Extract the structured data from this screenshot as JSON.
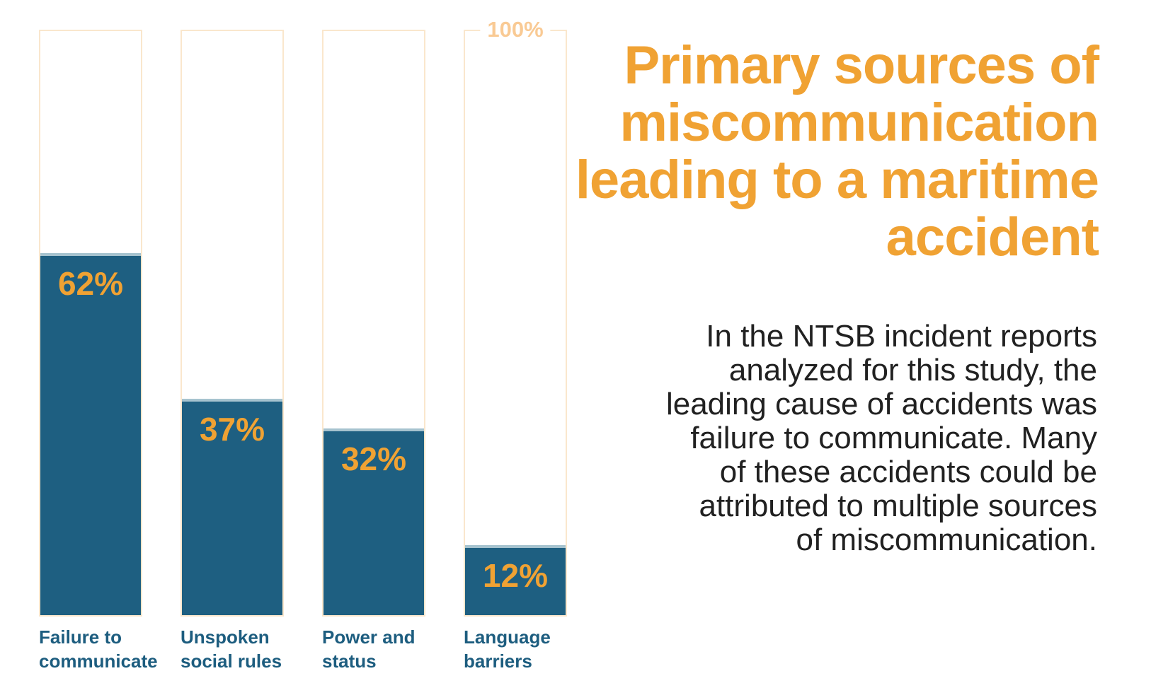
{
  "title": {
    "text": "Primary sources of\nmiscommunication\nleading to a maritime\naccident"
  },
  "paragraph": {
    "text": "In the NTSB incident reports\nanalyzed for this study, the\nleading cause of accidents was\nfailure to communicate. Many\nof these accidents could be\nattributed to multiple sources\nof miscommunication."
  },
  "axis": {
    "max_label": "100%"
  },
  "bars": [
    {
      "label": "Failure to\ncommunicate",
      "value_label": "62%",
      "pct": 62
    },
    {
      "label": "Unspoken\nsocial rules",
      "value_label": "37%",
      "pct": 37
    },
    {
      "label": "Power and\nstatus",
      "value_label": "32%",
      "pct": 32
    },
    {
      "label": "Language\nbarriers",
      "value_label": "12%",
      "pct": 12
    }
  ],
  "colors": {
    "accent_orange": "#f0a233",
    "light_orange": "#f9ca94",
    "bar_fill": "#1e5f81",
    "bar_fill_highlight": "#a6c3cf",
    "bar_outline": "#fae7cd",
    "label_teal": "#1d5d7f",
    "text_dark": "#212121"
  },
  "chart_data": {
    "type": "bar",
    "title": "Primary sources of miscommunication leading to a maritime accident",
    "subtitle": "In the NTSB incident reports analyzed for this study, the leading cause of accidents was failure to communicate. Many of these accidents could be attributed to multiple sources of miscommunication.",
    "categories": [
      "Failure to communicate",
      "Unspoken social rules",
      "Power and status",
      "Language barriers"
    ],
    "values": [
      62,
      37,
      32,
      12
    ],
    "unit": "%",
    "ylim": [
      0,
      100
    ],
    "annotations": [
      "100%"
    ],
    "xlabel": "",
    "ylabel": "",
    "grid": false,
    "legend": false,
    "orientation": "vertical"
  }
}
